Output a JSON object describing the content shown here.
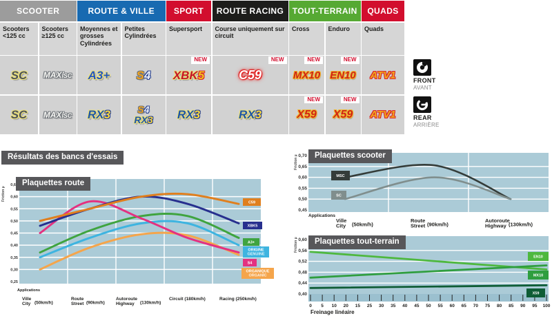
{
  "header": {
    "categories": [
      {
        "label": "SCOOTER",
        "color": "#9c9c9c"
      },
      {
        "label": "ROUTE & VILLE",
        "color": "#186ab1"
      },
      {
        "label": "SPORT",
        "color": "#d20e2e"
      },
      {
        "label": "ROUTE RACING",
        "color": "#1d1d1b"
      },
      {
        "label": "TOUT-TERRAIN",
        "color": "#56a933"
      },
      {
        "label": "QUADS",
        "color": "#d20e2e"
      }
    ]
  },
  "subheaders": [
    "Scooters <125 cc",
    "Scooters ≥125 cc",
    "Moyennes et grosses Cylindrées",
    "Petites Cylindrées",
    "Supersport",
    "Course uniquement sur circuit",
    "Cross",
    "Enduro",
    "Quads"
  ],
  "labels": {
    "new": "NEW",
    "results_title": "Résultats des bancs d'essais"
  },
  "side_labels": {
    "front": "FRONT",
    "front_fr": "AVANT",
    "rear": "REAR",
    "rear_fr": "ARRIÈRE"
  },
  "products": {
    "front": [
      {
        "label": "SC"
      },
      {
        "label": "MAXI",
        "sub": "SC"
      },
      {
        "label": "A3+"
      },
      {
        "s": "S",
        "n": "4"
      },
      {
        "main": "XBK",
        "n": "5"
      },
      {
        "label": "C59"
      },
      {
        "label": "MX10"
      },
      {
        "label": "EN10"
      },
      {
        "label": "ATV1"
      }
    ],
    "rear": [
      {
        "label": "SC"
      },
      {
        "label": "MAXI",
        "sub": "SC"
      },
      {
        "rx": "RX",
        "n": "3"
      },
      {
        "s": "S",
        "sn": "4",
        "rx": "RX",
        "n": "3"
      },
      {
        "rx": "RX",
        "n": "3"
      },
      {
        "rx": "RX",
        "n": "3"
      },
      {
        "label": "X59"
      },
      {
        "label": "X59"
      },
      {
        "label": "ATV1"
      }
    ]
  },
  "palette": {
    "chart_bg": "#abcbd7",
    "chart_band": "#9bc0cf",
    "panel": "#57575a"
  },
  "chart_data": [
    {
      "id": "route",
      "type": "line",
      "title": "Plaquettes route",
      "ylabel": "Friction µ",
      "x_axis_header": "Applications",
      "ylim": [
        0.25,
        0.65
      ],
      "yticks": [
        {
          "v": 0.65,
          "label": "0,65"
        },
        {
          "v": 0.6,
          "label": "0,60"
        },
        {
          "v": 0.55,
          "label": "0,55"
        },
        {
          "v": 0.5,
          "label": "0,50"
        },
        {
          "v": 0.45,
          "label": "0,45"
        },
        {
          "v": 0.4,
          "label": "0,40"
        },
        {
          "v": 0.35,
          "label": "0,35"
        },
        {
          "v": 0.3,
          "label": "0,30"
        },
        {
          "v": 0.25,
          "label": "0,25"
        }
      ],
      "categories": [
        {
          "lines": [
            "Ville",
            "City"
          ],
          "speed": "(50km/h)"
        },
        {
          "lines": [
            "Route",
            "Street"
          ],
          "speed": "(90km/h)"
        },
        {
          "lines": [
            "Autoroute",
            "Highway"
          ],
          "speed": "(130km/h)"
        },
        {
          "lines": [
            "Circuit"
          ],
          "speed": "(180km/h)"
        },
        {
          "lines": [
            "Racing"
          ],
          "speed": "(250km/h)"
        }
      ],
      "series": [
        {
          "name": "ORGANIQUE",
          "legend": [
            "ORGANIQUE",
            "ORGANIC"
          ],
          "color": "#f5a54b",
          "values": [
            0.3,
            0.39,
            0.445,
            0.44,
            0.36
          ]
        },
        {
          "name": "ORIGINE",
          "legend": [
            "ORIGINE",
            "GENUINE"
          ],
          "color": "#3eb4e0",
          "values": [
            0.35,
            0.43,
            0.49,
            0.49,
            0.4
          ]
        },
        {
          "name": "A3+",
          "legend": [
            "A3+"
          ],
          "color": "#3fa43f",
          "values": [
            0.37,
            0.46,
            0.52,
            0.52,
            0.43
          ]
        },
        {
          "name": "S4",
          "legend": [
            "S4"
          ],
          "color": "#e43180",
          "values": [
            0.45,
            0.58,
            0.51,
            0.43,
            0.37
          ]
        },
        {
          "name": "XBK5",
          "legend": [
            "XBK5"
          ],
          "color": "#272f8e",
          "values": [
            0.48,
            0.55,
            0.6,
            0.57,
            0.49
          ]
        },
        {
          "name": "C59",
          "legend": [
            "C59"
          ],
          "color": "#e07f1e",
          "values": [
            0.5,
            0.55,
            0.6,
            0.61,
            0.57
          ]
        }
      ]
    },
    {
      "id": "scooter",
      "type": "line",
      "title": "Plaquettes scooter",
      "ylabel": "Friction µ",
      "x_axis_header": "Applications",
      "ylim": [
        0.45,
        0.7
      ],
      "yticks": [
        {
          "v": 0.7,
          "label": "0,70"
        },
        {
          "v": 0.65,
          "label": "0,65"
        },
        {
          "v": 0.6,
          "label": "0,60"
        },
        {
          "v": 0.55,
          "label": "0,55"
        },
        {
          "v": 0.5,
          "label": "0,50"
        },
        {
          "v": 0.45,
          "label": "0,45"
        }
      ],
      "categories": [
        {
          "lines": [
            "Ville",
            "City"
          ],
          "speed": "(50km/h)"
        },
        {
          "lines": [
            "Route",
            "Street"
          ],
          "speed": "(90km/h)"
        },
        {
          "lines": [
            "Autoroute",
            "Highway"
          ],
          "speed": "(130km/h)"
        }
      ],
      "series": [
        {
          "name": "MSC",
          "legend": [
            "MSC"
          ],
          "color": "#343c39",
          "values": [
            0.6,
            0.655,
            0.5
          ]
        },
        {
          "name": "SC",
          "legend": [
            "SC"
          ],
          "color": "#808e8d",
          "values": [
            0.5,
            0.6,
            0.5
          ]
        }
      ]
    },
    {
      "id": "terrain",
      "type": "line",
      "title": "Plaquettes tout-terrain",
      "ylabel": "Friction µ",
      "xlabel": "Freinage linéaire",
      "ylim": [
        0.4,
        0.6
      ],
      "xlim": [
        0,
        100
      ],
      "yticks": [
        {
          "v": 0.6,
          "label": "0,60"
        },
        {
          "v": 0.56,
          "label": "0,56"
        },
        {
          "v": 0.52,
          "label": "0,52"
        },
        {
          "v": 0.48,
          "label": "0,48"
        },
        {
          "v": 0.44,
          "label": "0,44"
        },
        {
          "v": 0.4,
          "label": "0,40"
        }
      ],
      "xticks": [
        "0",
        "5",
        "10",
        "20",
        "15",
        "25",
        "30",
        "35",
        "40",
        "45",
        "50",
        "55",
        "60",
        "65",
        "70",
        "75",
        "80",
        "85",
        "90",
        "95",
        "100"
      ],
      "series": [
        {
          "name": "EN10",
          "legend": [
            "EN10"
          ],
          "color": "#4eb83e",
          "values": [
            0.555,
            0.49
          ]
        },
        {
          "name": "MX10",
          "legend": [
            "MX10"
          ],
          "color": "#2f9e3f",
          "values": [
            0.46,
            0.505
          ]
        },
        {
          "name": "X59",
          "legend": [
            "X59"
          ],
          "color": "#0e5c35",
          "values": [
            0.422,
            0.432
          ]
        }
      ]
    }
  ]
}
